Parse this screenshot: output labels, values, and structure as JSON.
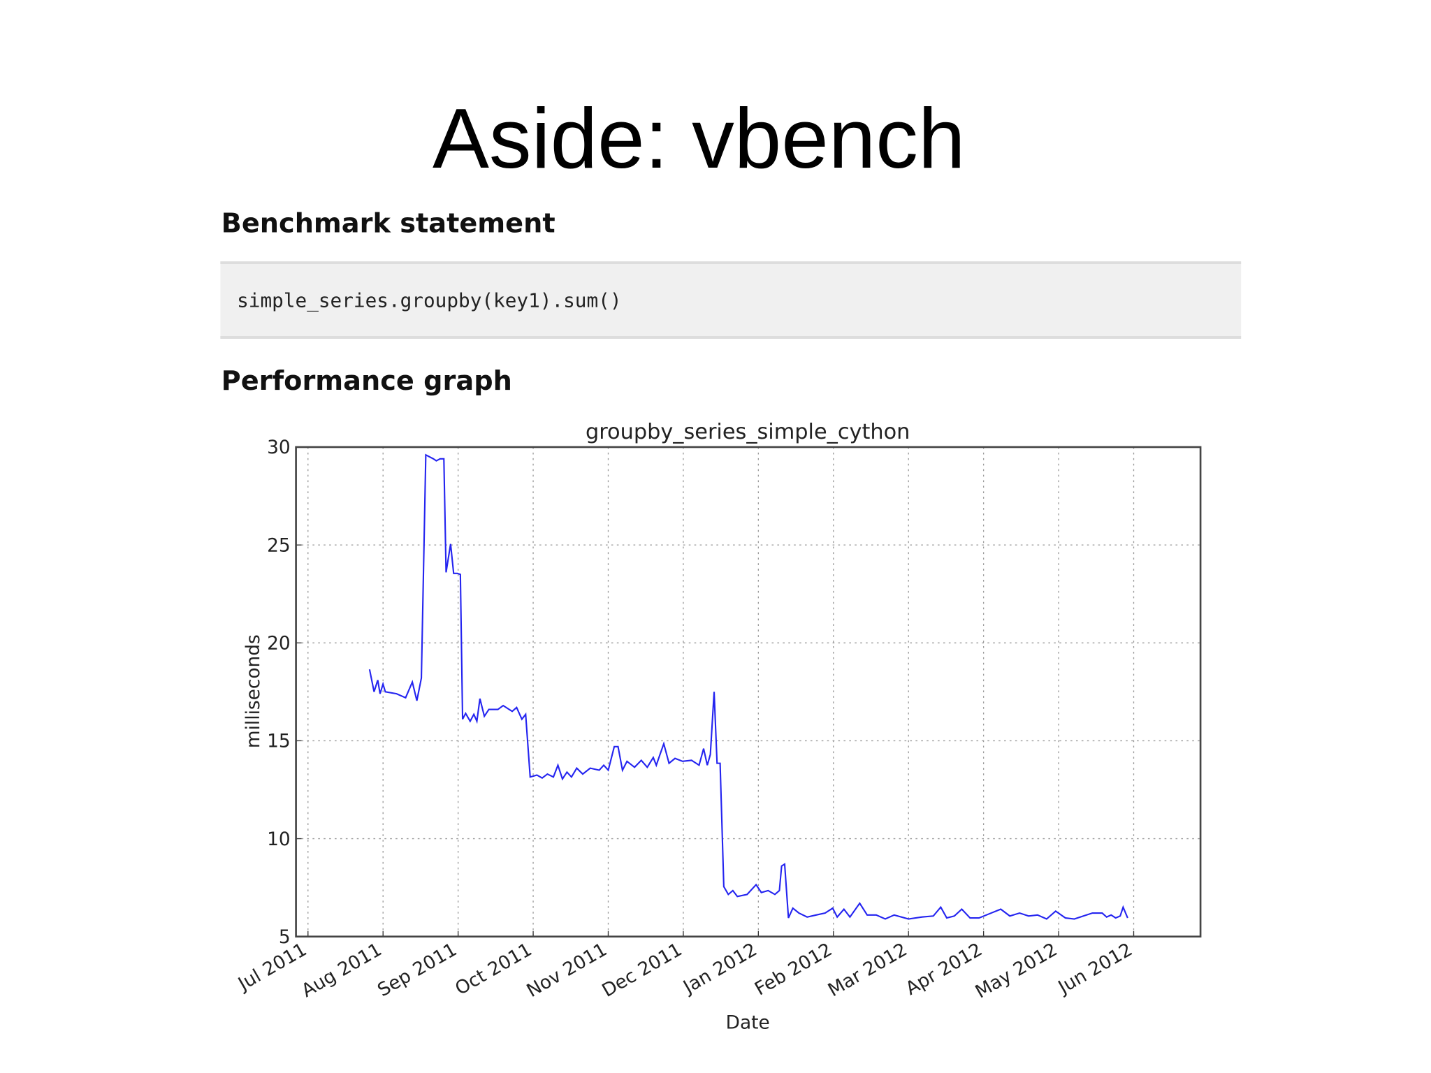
{
  "title": "Aside: vbench",
  "benchmark_heading": "Benchmark statement",
  "code": "simple_series.groupby(key1).sum()",
  "graph_heading": "Performance graph",
  "chart_data": {
    "type": "line",
    "title": "groupby_series_simple_cython",
    "xlabel": "Date",
    "ylabel": "milliseconds",
    "color": "#2424f0",
    "grid": true,
    "xlim": [
      -0.16,
      11.89
    ],
    "ylim": [
      5,
      30
    ],
    "yticks": [
      5,
      10,
      15,
      20,
      25,
      30
    ],
    "xticks": [
      {
        "value": 0,
        "label": "Jul 2011"
      },
      {
        "value": 1,
        "label": "Aug 2011"
      },
      {
        "value": 2,
        "label": "Sep 2011"
      },
      {
        "value": 3,
        "label": "Oct 2011"
      },
      {
        "value": 4,
        "label": "Nov 2011"
      },
      {
        "value": 5,
        "label": "Dec 2011"
      },
      {
        "value": 6,
        "label": "Jan 2012"
      },
      {
        "value": 7,
        "label": "Feb 2012"
      },
      {
        "value": 8,
        "label": "Mar 2012"
      },
      {
        "value": 9,
        "label": "Apr 2012"
      },
      {
        "value": 10,
        "label": "May 2012"
      },
      {
        "value": 11,
        "label": "Jun 2012"
      }
    ],
    "x": [
      0.82,
      0.88,
      0.93,
      0.96,
      1.0,
      1.03,
      1.18,
      1.3,
      1.39,
      1.45,
      1.51,
      1.57,
      1.67,
      1.71,
      1.76,
      1.81,
      1.84,
      1.9,
      1.94,
      1.99,
      2.03,
      2.06,
      2.1,
      2.16,
      2.21,
      2.25,
      2.29,
      2.35,
      2.41,
      2.53,
      2.6,
      2.72,
      2.78,
      2.85,
      2.9,
      2.96,
      3.05,
      3.12,
      3.19,
      3.27,
      3.33,
      3.39,
      3.45,
      3.51,
      3.58,
      3.66,
      3.76,
      3.88,
      3.94,
      4.0,
      4.08,
      4.13,
      4.19,
      4.25,
      4.35,
      4.44,
      4.52,
      4.6,
      4.64,
      4.69,
      4.74,
      4.81,
      4.89,
      4.99,
      5.11,
      5.21,
      5.27,
      5.32,
      5.36,
      5.41,
      5.45,
      5.49,
      5.54,
      5.6,
      5.66,
      5.72,
      5.85,
      5.97,
      6.04,
      6.13,
      6.22,
      6.28,
      6.31,
      6.35,
      6.4,
      6.46,
      6.54,
      6.65,
      6.77,
      6.89,
      6.99,
      7.05,
      7.14,
      7.22,
      7.35,
      7.45,
      7.57,
      7.69,
      7.81,
      8.0,
      8.18,
      8.33,
      8.43,
      8.51,
      8.61,
      8.71,
      8.82,
      8.94,
      9.1,
      9.23,
      9.35,
      9.48,
      9.6,
      9.72,
      9.84,
      9.96,
      10.09,
      10.21,
      10.33,
      10.45,
      10.58,
      10.64,
      10.7,
      10.76,
      10.82,
      10.86,
      10.92
    ],
    "values": [
      18.65,
      17.5,
      18.1,
      17.4,
      17.9,
      17.5,
      17.4,
      17.2,
      18.0,
      17.05,
      18.2,
      29.6,
      29.4,
      29.3,
      29.4,
      29.4,
      23.6,
      25.05,
      23.55,
      23.55,
      23.5,
      16.1,
      16.4,
      16.0,
      16.35,
      16.0,
      17.15,
      16.25,
      16.6,
      16.6,
      16.8,
      16.5,
      16.7,
      16.1,
      16.35,
      13.15,
      13.25,
      13.1,
      13.3,
      13.15,
      13.75,
      13.05,
      13.4,
      13.15,
      13.6,
      13.3,
      13.6,
      13.5,
      13.75,
      13.5,
      14.7,
      14.7,
      13.5,
      13.95,
      13.65,
      14.0,
      13.65,
      14.15,
      13.75,
      14.3,
      14.85,
      13.85,
      14.1,
      13.95,
      14.0,
      13.75,
      14.6,
      13.75,
      14.3,
      17.5,
      13.85,
      13.85,
      7.55,
      7.15,
      7.35,
      7.05,
      7.15,
      7.65,
      7.25,
      7.35,
      7.15,
      7.35,
      8.6,
      8.7,
      5.95,
      6.45,
      6.2,
      6.0,
      6.1,
      6.2,
      6.45,
      6.0,
      6.4,
      6.0,
      6.7,
      6.1,
      6.1,
      5.9,
      6.1,
      5.9,
      6.0,
      6.05,
      6.5,
      5.95,
      6.05,
      6.4,
      5.95,
      5.95,
      6.2,
      6.4,
      6.05,
      6.2,
      6.05,
      6.1,
      5.9,
      6.3,
      5.95,
      5.9,
      6.05,
      6.2,
      6.2,
      6.0,
      6.1,
      5.95,
      6.05,
      6.5,
      5.95
    ]
  }
}
